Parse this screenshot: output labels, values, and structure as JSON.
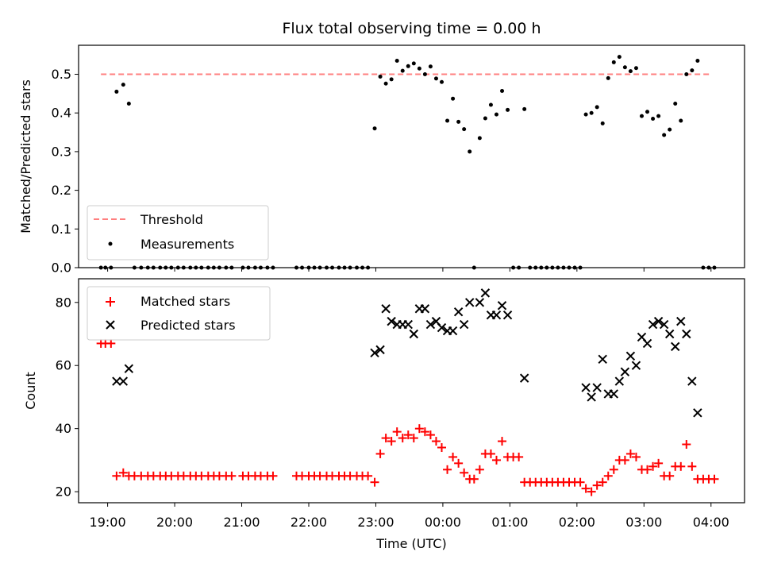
{
  "chart_data": [
    {
      "type": "scatter",
      "title": "Flux total observing time = 0.00 h",
      "xlabel": "",
      "ylabel": "Matched/Predicted stars",
      "ylim": [
        0,
        0.575
      ],
      "xlim": [
        "18:34",
        "04:30"
      ],
      "yticks": [
        "0.0",
        "0.1",
        "0.2",
        "0.3",
        "0.4",
        "0.5"
      ],
      "legend_position": "lower-left",
      "threshold": {
        "name": "Threshold",
        "value": 0.5,
        "x_range": [
          "18:54",
          "04:00"
        ],
        "color": "#ff7f7f",
        "style": "dashed"
      },
      "series": [
        {
          "name": "Measurements",
          "color": "#000000",
          "points": [
            [
              "18:54",
              0.0
            ],
            [
              "18:58",
              0.0
            ],
            [
              "19:03",
              0.0
            ],
            [
              "19:08",
              0.455
            ],
            [
              "19:14",
              0.473
            ],
            [
              "19:19",
              0.424
            ],
            [
              "19:24",
              0.0
            ],
            [
              "19:30",
              0.0
            ],
            [
              "19:36",
              0.0
            ],
            [
              "19:41",
              0.0
            ],
            [
              "19:47",
              0.0
            ],
            [
              "19:52",
              0.0
            ],
            [
              "19:57",
              0.0
            ],
            [
              "20:03",
              0.0
            ],
            [
              "20:08",
              0.0
            ],
            [
              "20:14",
              0.0
            ],
            [
              "20:19",
              0.0
            ],
            [
              "20:24",
              0.0
            ],
            [
              "20:30",
              0.0
            ],
            [
              "20:35",
              0.0
            ],
            [
              "20:40",
              0.0
            ],
            [
              "20:46",
              0.0
            ],
            [
              "20:51",
              0.0
            ],
            [
              "21:01",
              0.0
            ],
            [
              "21:06",
              0.0
            ],
            [
              "21:12",
              0.0
            ],
            [
              "21:17",
              0.0
            ],
            [
              "21:23",
              0.0
            ],
            [
              "21:28",
              0.0
            ],
            [
              "21:49",
              0.0
            ],
            [
              "21:54",
              0.0
            ],
            [
              "22:00",
              0.0
            ],
            [
              "22:05",
              0.0
            ],
            [
              "22:10",
              0.0
            ],
            [
              "22:16",
              0.0
            ],
            [
              "22:21",
              0.0
            ],
            [
              "22:27",
              0.0
            ],
            [
              "22:32",
              0.0
            ],
            [
              "22:37",
              0.0
            ],
            [
              "22:43",
              0.0
            ],
            [
              "22:48",
              0.0
            ],
            [
              "22:53",
              0.0
            ],
            [
              "22:59",
              0.36
            ],
            [
              "23:04",
              0.494
            ],
            [
              "23:09",
              0.476
            ],
            [
              "23:14",
              0.487
            ],
            [
              "23:19",
              0.535
            ],
            [
              "23:24",
              0.509
            ],
            [
              "23:29",
              0.521
            ],
            [
              "23:34",
              0.528
            ],
            [
              "23:39",
              0.515
            ],
            [
              "23:44",
              0.5
            ],
            [
              "23:49",
              0.52
            ],
            [
              "23:54",
              0.489
            ],
            [
              "23:59",
              0.48
            ],
            [
              "00:04",
              0.38
            ],
            [
              "00:09",
              0.437
            ],
            [
              "00:14",
              0.377
            ],
            [
              "00:19",
              0.358
            ],
            [
              "00:24",
              0.3
            ],
            [
              "00:28",
              0.0
            ],
            [
              "00:33",
              0.335
            ],
            [
              "00:38",
              0.386
            ],
            [
              "00:43",
              0.421
            ],
            [
              "00:48",
              0.396
            ],
            [
              "00:53",
              0.457
            ],
            [
              "00:58",
              0.408
            ],
            [
              "01:03",
              0.0
            ],
            [
              "01:08",
              0.0
            ],
            [
              "01:13",
              0.41
            ],
            [
              "01:18",
              0.0
            ],
            [
              "01:23",
              0.0
            ],
            [
              "01:28",
              0.0
            ],
            [
              "01:33",
              0.0
            ],
            [
              "01:38",
              0.0
            ],
            [
              "01:43",
              0.0
            ],
            [
              "01:48",
              0.0
            ],
            [
              "01:53",
              0.0
            ],
            [
              "01:58",
              0.0
            ],
            [
              "02:03",
              0.0
            ],
            [
              "02:08",
              0.396
            ],
            [
              "02:13",
              0.4
            ],
            [
              "02:18",
              0.415
            ],
            [
              "02:23",
              0.373
            ],
            [
              "02:28",
              0.49
            ],
            [
              "02:33",
              0.531
            ],
            [
              "02:38",
              0.545
            ],
            [
              "02:43",
              0.518
            ],
            [
              "02:48",
              0.508
            ],
            [
              "02:53",
              0.516
            ],
            [
              "02:58",
              0.392
            ],
            [
              "03:03",
              0.403
            ],
            [
              "03:08",
              0.385
            ],
            [
              "03:13",
              0.392
            ],
            [
              "03:18",
              0.343
            ],
            [
              "03:23",
              0.357
            ],
            [
              "03:28",
              0.424
            ],
            [
              "03:33",
              0.38
            ],
            [
              "03:38",
              0.5
            ],
            [
              "03:43",
              0.51
            ],
            [
              "03:48",
              0.535
            ],
            [
              "03:53",
              0.0
            ],
            [
              "03:58",
              0.0
            ],
            [
              "04:03",
              0.0
            ]
          ]
        }
      ]
    },
    {
      "type": "scatter",
      "title": "",
      "xlabel": "Time (UTC)",
      "ylabel": "Count",
      "ylim": [
        16.5,
        87.5
      ],
      "xlim": [
        "18:34",
        "04:30"
      ],
      "yticks": [
        "20",
        "40",
        "60",
        "80"
      ],
      "xticks": [
        "19:00",
        "20:00",
        "21:00",
        "22:00",
        "23:00",
        "00:00",
        "01:00",
        "02:00",
        "03:00",
        "04:00"
      ],
      "legend_position": "upper-left",
      "series": [
        {
          "name": "Matched stars",
          "marker": "plus",
          "color": "#ff0000",
          "points": [
            [
              "18:54",
              67
            ],
            [
              "18:58",
              67
            ],
            [
              "19:03",
              67
            ],
            [
              "19:08",
              25
            ],
            [
              "19:14",
              26
            ],
            [
              "19:19",
              25
            ],
            [
              "19:24",
              25
            ],
            [
              "19:30",
              25
            ],
            [
              "19:36",
              25
            ],
            [
              "19:41",
              25
            ],
            [
              "19:47",
              25
            ],
            [
              "19:52",
              25
            ],
            [
              "19:57",
              25
            ],
            [
              "20:03",
              25
            ],
            [
              "20:08",
              25
            ],
            [
              "20:14",
              25
            ],
            [
              "20:19",
              25
            ],
            [
              "20:24",
              25
            ],
            [
              "20:30",
              25
            ],
            [
              "20:35",
              25
            ],
            [
              "20:40",
              25
            ],
            [
              "20:46",
              25
            ],
            [
              "20:51",
              25
            ],
            [
              "21:01",
              25
            ],
            [
              "21:06",
              25
            ],
            [
              "21:12",
              25
            ],
            [
              "21:17",
              25
            ],
            [
              "21:23",
              25
            ],
            [
              "21:28",
              25
            ],
            [
              "21:49",
              25
            ],
            [
              "21:54",
              25
            ],
            [
              "22:00",
              25
            ],
            [
              "22:05",
              25
            ],
            [
              "22:10",
              25
            ],
            [
              "22:16",
              25
            ],
            [
              "22:21",
              25
            ],
            [
              "22:27",
              25
            ],
            [
              "22:32",
              25
            ],
            [
              "22:37",
              25
            ],
            [
              "22:43",
              25
            ],
            [
              "22:48",
              25
            ],
            [
              "22:53",
              25
            ],
            [
              "22:59",
              23
            ],
            [
              "23:04",
              32
            ],
            [
              "23:09",
              37
            ],
            [
              "23:14",
              36
            ],
            [
              "23:19",
              39
            ],
            [
              "23:24",
              37
            ],
            [
              "23:29",
              38
            ],
            [
              "23:34",
              37
            ],
            [
              "23:39",
              40
            ],
            [
              "23:44",
              39
            ],
            [
              "23:49",
              38
            ],
            [
              "23:54",
              36
            ],
            [
              "23:59",
              34
            ],
            [
              "00:04",
              27
            ],
            [
              "00:09",
              31
            ],
            [
              "00:14",
              29
            ],
            [
              "00:19",
              26
            ],
            [
              "00:24",
              24
            ],
            [
              "00:28",
              24
            ],
            [
              "00:33",
              27
            ],
            [
              "00:38",
              32
            ],
            [
              "00:43",
              32
            ],
            [
              "00:48",
              30
            ],
            [
              "00:53",
              36
            ],
            [
              "00:58",
              31
            ],
            [
              "01:03",
              31
            ],
            [
              "01:08",
              31
            ],
            [
              "01:13",
              23
            ],
            [
              "01:18",
              23
            ],
            [
              "01:23",
              23
            ],
            [
              "01:28",
              23
            ],
            [
              "01:33",
              23
            ],
            [
              "01:38",
              23
            ],
            [
              "01:43",
              23
            ],
            [
              "01:48",
              23
            ],
            [
              "01:53",
              23
            ],
            [
              "01:58",
              23
            ],
            [
              "02:03",
              23
            ],
            [
              "02:08",
              21
            ],
            [
              "02:13",
              20
            ],
            [
              "02:18",
              22
            ],
            [
              "02:23",
              23
            ],
            [
              "02:28",
              25
            ],
            [
              "02:33",
              27
            ],
            [
              "02:38",
              30
            ],
            [
              "02:43",
              30
            ],
            [
              "02:48",
              32
            ],
            [
              "02:53",
              31
            ],
            [
              "02:58",
              27
            ],
            [
              "03:03",
              27
            ],
            [
              "03:08",
              28
            ],
            [
              "03:13",
              29
            ],
            [
              "03:18",
              25
            ],
            [
              "03:23",
              25
            ],
            [
              "03:28",
              28
            ],
            [
              "03:33",
              28
            ],
            [
              "03:38",
              35
            ],
            [
              "03:43",
              28
            ],
            [
              "03:48",
              24
            ],
            [
              "03:53",
              24
            ],
            [
              "03:58",
              24
            ],
            [
              "04:03",
              24
            ]
          ]
        },
        {
          "name": "Predicted stars",
          "marker": "x",
          "color": "#000000",
          "points": [
            [
              "19:08",
              55
            ],
            [
              "19:14",
              55
            ],
            [
              "19:19",
              59
            ],
            [
              "22:59",
              64
            ],
            [
              "23:04",
              65
            ],
            [
              "23:09",
              78
            ],
            [
              "23:14",
              74
            ],
            [
              "23:19",
              73
            ],
            [
              "23:24",
              73
            ],
            [
              "23:29",
              73
            ],
            [
              "23:34",
              70
            ],
            [
              "23:39",
              78
            ],
            [
              "23:44",
              78
            ],
            [
              "23:49",
              73
            ],
            [
              "23:54",
              74
            ],
            [
              "23:59",
              72
            ],
            [
              "00:04",
              71
            ],
            [
              "00:09",
              71
            ],
            [
              "00:14",
              77
            ],
            [
              "00:19",
              73
            ],
            [
              "00:24",
              80
            ],
            [
              "00:33",
              80
            ],
            [
              "00:38",
              83
            ],
            [
              "00:43",
              76
            ],
            [
              "00:48",
              76
            ],
            [
              "00:53",
              79
            ],
            [
              "00:58",
              76
            ],
            [
              "01:13",
              56
            ],
            [
              "02:08",
              53
            ],
            [
              "02:13",
              50
            ],
            [
              "02:18",
              53
            ],
            [
              "02:23",
              62
            ],
            [
              "02:28",
              51
            ],
            [
              "02:33",
              51
            ],
            [
              "02:38",
              55
            ],
            [
              "02:43",
              58
            ],
            [
              "02:48",
              63
            ],
            [
              "02:53",
              60
            ],
            [
              "02:58",
              69
            ],
            [
              "03:03",
              67
            ],
            [
              "03:08",
              73
            ],
            [
              "03:13",
              74
            ],
            [
              "03:18",
              73
            ],
            [
              "03:23",
              70
            ],
            [
              "03:28",
              66
            ],
            [
              "03:33",
              74
            ],
            [
              "03:38",
              70
            ],
            [
              "03:43",
              55
            ],
            [
              "03:48",
              45
            ]
          ]
        }
      ]
    }
  ]
}
